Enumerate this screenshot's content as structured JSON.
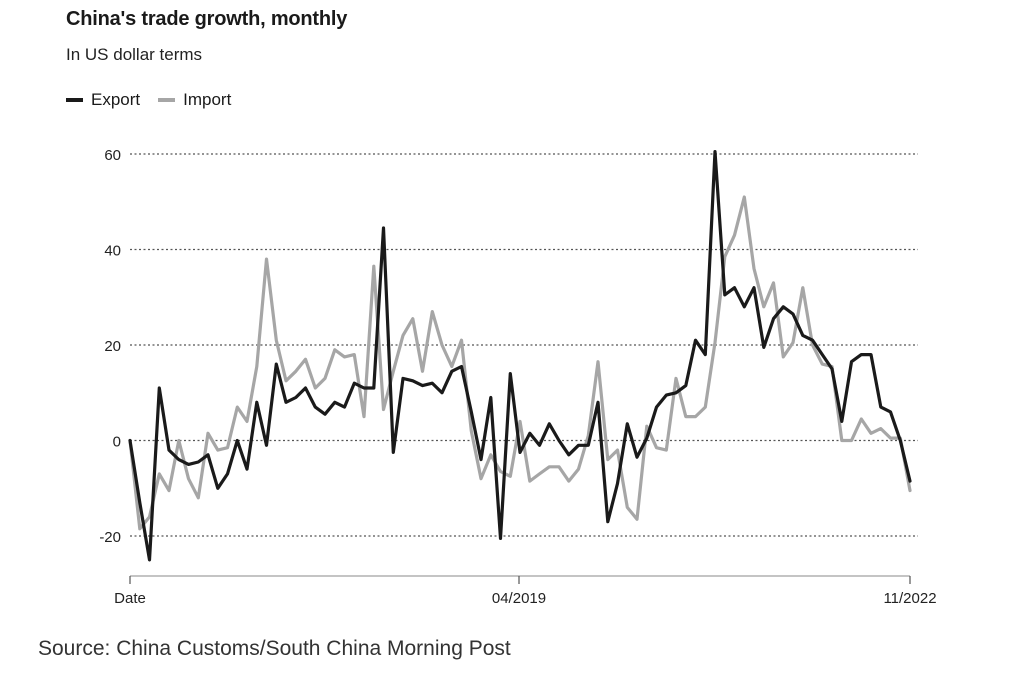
{
  "title": "China's trade growth, monthly",
  "subtitle": "In US dollar terms",
  "source": "Source: China Customs/South China Morning Post",
  "chart_data": {
    "type": "line",
    "x_tick_labels": [
      "Date",
      "04/2019",
      "11/2022"
    ],
    "ylim": [
      -25,
      62
    ],
    "y_ticks": [
      -20,
      0,
      20,
      40,
      60
    ],
    "grid": true,
    "legend_position": "top-left",
    "series": [
      {
        "name": "Export",
        "color": "#1a1a1a",
        "values": [
          0,
          -13,
          -25,
          11,
          -2,
          -4,
          -5,
          -4.5,
          -3,
          -10,
          -7,
          0,
          -6,
          8,
          -1,
          16,
          8,
          9,
          11,
          7,
          5.5,
          8,
          7,
          12,
          11,
          11,
          44.5,
          -2.5,
          13,
          12.5,
          11.5,
          12,
          10,
          14.5,
          15.5,
          6,
          -4,
          9,
          -20.5,
          14,
          -2.5,
          1.5,
          -1,
          3.5,
          0,
          -3,
          -1,
          -1,
          8,
          -17,
          -9,
          3.5,
          -3.5,
          0.5,
          7,
          9.5,
          10,
          11.5,
          21,
          18,
          60.5,
          30.5,
          32,
          28,
          32,
          19.5,
          25.5,
          28,
          26.5,
          22,
          21,
          18,
          15,
          4,
          16.5,
          18,
          18,
          7,
          6,
          0,
          -8.5
        ]
      },
      {
        "name": "Import",
        "color": "#a6a6a6",
        "values": [
          0,
          -18.5,
          -16,
          -7,
          -10.5,
          0,
          -8,
          -12,
          1.5,
          -2,
          -1.5,
          7,
          4,
          15.5,
          38,
          21,
          12.5,
          14.5,
          17,
          11,
          13,
          19,
          17.5,
          18,
          5,
          36.5,
          6.5,
          14.5,
          22,
          25.5,
          14.5,
          27,
          20,
          15.5,
          21,
          2,
          -8,
          -3,
          -6.5,
          -7.5,
          4,
          -8.5,
          -7,
          -5.5,
          -5.5,
          -8.5,
          -6,
          1,
          16.5,
          -4,
          -2,
          -14,
          -16.5,
          3,
          -1.5,
          -2,
          13,
          5,
          5,
          7,
          20.5,
          38.5,
          43,
          51,
          36,
          28,
          33,
          17.5,
          20.5,
          32,
          20,
          16,
          15.5,
          0,
          0,
          4.5,
          1.5,
          2.5,
          0.5,
          0.5,
          -10.5
        ]
      }
    ]
  }
}
